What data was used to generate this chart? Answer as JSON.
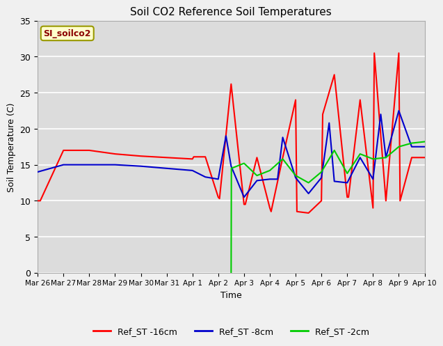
{
  "title": "Soil CO2 Reference Soil Temperatures",
  "xlabel": "Time",
  "ylabel": "Soil Temperature (C)",
  "ylim": [
    0,
    35
  ],
  "background_color": "#dcdcdc",
  "annotation_label": "SI_soilco2",
  "annotation_color": "#8b0000",
  "annotation_bg": "#ffffcc",
  "annotation_border": "#999900",
  "xtick_labels": [
    "Mar 26",
    "Mar 27",
    "Mar 28",
    "Mar 29",
    "Mar 30",
    "Mar 31",
    "Apr 1",
    "Apr 2",
    "Apr 3",
    "Apr 4",
    "Apr 5",
    "Apr 6",
    "Apr 7",
    "Apr 8",
    "Apr 9",
    "Apr 10"
  ],
  "legend_labels": [
    "Ref_ST -16cm",
    "Ref_ST -8cm",
    "Ref_ST -2cm"
  ],
  "legend_colors": [
    "#ff0000",
    "#0000cc",
    "#00cc00"
  ],
  "red_x": [
    0,
    0.1,
    1,
    2,
    3,
    4,
    5,
    6,
    6.05,
    6.5,
    7,
    7.05,
    7.5,
    8,
    8.05,
    8.5,
    9,
    9.05,
    9.5,
    10,
    10.05,
    10.5,
    11,
    11.05,
    11.5,
    12,
    12.05,
    12.5,
    13,
    13.05,
    13.5,
    14,
    14.05,
    14.5,
    15
  ],
  "red_y": [
    10,
    10,
    17,
    17,
    16.5,
    16.2,
    16.0,
    15.8,
    16.1,
    16.1,
    10.5,
    10.3,
    26.2,
    9.5,
    9.5,
    16.0,
    9.0,
    8.5,
    16.0,
    24.0,
    8.5,
    8.3,
    10.0,
    22.0,
    27.5,
    10.5,
    10.5,
    24.0,
    9.0,
    30.5,
    10.0,
    30.5,
    10.0,
    16.0,
    16.0
  ],
  "blue_x": [
    0,
    1,
    2,
    3,
    4,
    5,
    6,
    6.5,
    7,
    7.3,
    7.5,
    8,
    8.5,
    9,
    9.3,
    9.5,
    10,
    10.5,
    11,
    11.3,
    11.5,
    12,
    12.5,
    13,
    13.3,
    13.5,
    14,
    14.5,
    15
  ],
  "blue_y": [
    14,
    15,
    15,
    15,
    14.8,
    14.5,
    14.2,
    13.3,
    13.0,
    19.0,
    14.8,
    10.5,
    12.8,
    13.0,
    13.0,
    18.8,
    13.2,
    11.0,
    13.2,
    20.8,
    12.7,
    12.5,
    16.0,
    13.0,
    22.0,
    16.0,
    22.5,
    17.5,
    17.5
  ],
  "green_x": [
    7.5,
    7.51,
    8,
    8.5,
    9,
    9.5,
    10,
    10.5,
    11,
    11.5,
    12,
    12.5,
    13,
    13.5,
    14,
    14.5,
    15
  ],
  "green_y": [
    0,
    14.5,
    15.2,
    13.5,
    14.2,
    15.8,
    13.5,
    12.5,
    14.0,
    17.0,
    13.8,
    16.5,
    15.8,
    16.0,
    17.5,
    18.0,
    18.2
  ]
}
